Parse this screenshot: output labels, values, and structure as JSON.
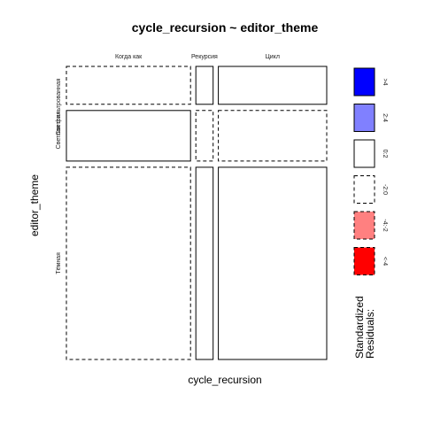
{
  "chart_data": {
    "type": "mosaic",
    "title": "cycle_recursion ~ editor_theme",
    "xlabel": "cycle_recursion",
    "ylabel": "editor_theme",
    "x_categories": [
      "Когда как",
      "Рекурсия",
      "Цикл"
    ],
    "y_categories": [
      "Светлая фильтрованная",
      "Светлая",
      "Тёмная"
    ],
    "y_labels_shown": [
      "Светлая фильтрованная",
      "Светлая",
      "Тёмная"
    ],
    "row_proportions": [
      0.135,
      0.18,
      0.685
    ],
    "column_proportions_by_row": [
      [
        0.497,
        0.069,
        0.434
      ],
      [
        0.497,
        0.069,
        0.434
      ],
      [
        0.497,
        0.069,
        0.434
      ]
    ],
    "residual_classes": [
      [
        "neg_small",
        "pos_small",
        "pos_small"
      ],
      [
        "pos_small",
        "neg_small",
        "neg_small"
      ],
      [
        "neg_small",
        "pos_small",
        "pos_small"
      ]
    ],
    "legend": {
      "title": "Standardized\nResiduals:",
      "title_lines": [
        "Standardized",
        "Residuals:"
      ],
      "position": "right",
      "items": [
        {
          "label": ">4",
          "fill": "#0000ff",
          "dashed": false
        },
        {
          "label": "2:4",
          "fill": "#8080ff",
          "dashed": false
        },
        {
          "label": "0:2",
          "fill": "#ffffff",
          "dashed": false
        },
        {
          "label": "-2:0",
          "fill": "#ffffff",
          "dashed": true
        },
        {
          "label": "-4:-2",
          "fill": "#ff8080",
          "dashed": true
        },
        {
          "label": "<-4",
          "fill": "#ff0000",
          "dashed": true
        }
      ]
    }
  }
}
